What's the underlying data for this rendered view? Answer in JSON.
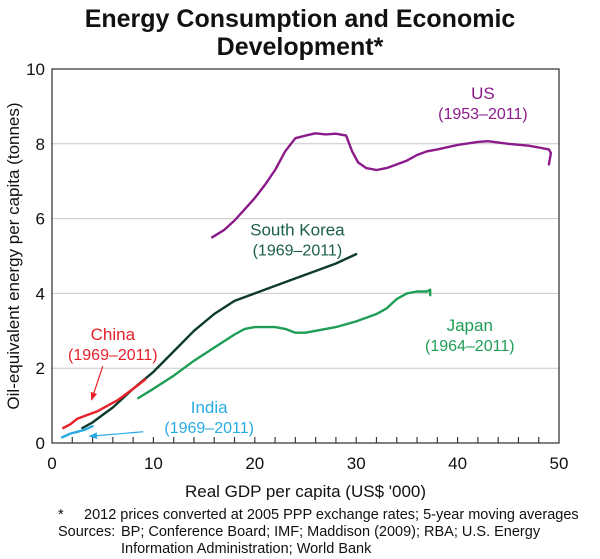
{
  "chart_data": {
    "type": "line",
    "title": "Energy Consumption and Economic Development*",
    "title_lines": [
      "Energy Consumption and Economic",
      "Development*"
    ],
    "xlabel": "Real GDP per capita (US$ '000)",
    "ylabel": "Oil-equivalent energy per capita (tonnes)",
    "xlim": [
      0,
      50
    ],
    "ylim": [
      0,
      10
    ],
    "xticks": [
      0,
      10,
      20,
      30,
      40,
      50
    ],
    "xminor_step": 2,
    "yticks": [
      0,
      2,
      4,
      6,
      8,
      10
    ],
    "grid": "horizontal",
    "legend": "inline-labels",
    "series": [
      {
        "name": "US",
        "period": "(1953–2011)",
        "color": "#8B1A8B",
        "points": [
          [
            15.8,
            5.5
          ],
          [
            17,
            5.7
          ],
          [
            18,
            5.95
          ],
          [
            19,
            6.25
          ],
          [
            20,
            6.55
          ],
          [
            21,
            6.9
          ],
          [
            22,
            7.3
          ],
          [
            23,
            7.8
          ],
          [
            24,
            8.15
          ],
          [
            25,
            8.22
          ],
          [
            26,
            8.28
          ],
          [
            27,
            8.25
          ],
          [
            28,
            8.27
          ],
          [
            29,
            8.22
          ],
          [
            29.6,
            7.8
          ],
          [
            30.2,
            7.5
          ],
          [
            31,
            7.35
          ],
          [
            32,
            7.3
          ],
          [
            33,
            7.35
          ],
          [
            34,
            7.45
          ],
          [
            35,
            7.55
          ],
          [
            36,
            7.7
          ],
          [
            37,
            7.8
          ],
          [
            38,
            7.85
          ],
          [
            40,
            7.97
          ],
          [
            42,
            8.05
          ],
          [
            43,
            8.07
          ],
          [
            45,
            8.0
          ],
          [
            47,
            7.95
          ],
          [
            48,
            7.9
          ],
          [
            49,
            7.85
          ],
          [
            49.2,
            7.75
          ],
          [
            49,
            7.45
          ]
        ],
        "label_at": [
          42.5,
          9.2
        ]
      },
      {
        "name": "South Korea",
        "period": "(1969–2011)",
        "color": "#0D3B2A",
        "label_color": "#1A5E4A",
        "points": [
          [
            3,
            0.4
          ],
          [
            4,
            0.55
          ],
          [
            5,
            0.75
          ],
          [
            6,
            0.95
          ],
          [
            7,
            1.2
          ],
          [
            8,
            1.45
          ],
          [
            10,
            1.9
          ],
          [
            12,
            2.45
          ],
          [
            14,
            3.0
          ],
          [
            16,
            3.45
          ],
          [
            18,
            3.8
          ],
          [
            20,
            4.0
          ],
          [
            22,
            4.2
          ],
          [
            24,
            4.4
          ],
          [
            26,
            4.6
          ],
          [
            28,
            4.8
          ],
          [
            30,
            5.05
          ]
        ],
        "label_at": [
          24.2,
          5.55
        ]
      },
      {
        "name": "Japan",
        "period": "(1964–2011)",
        "color": "#1E9E55",
        "points": [
          [
            8.5,
            1.2
          ],
          [
            10,
            1.45
          ],
          [
            12,
            1.8
          ],
          [
            14,
            2.2
          ],
          [
            16,
            2.55
          ],
          [
            18,
            2.9
          ],
          [
            19,
            3.05
          ],
          [
            20,
            3.1
          ],
          [
            22,
            3.1
          ],
          [
            23,
            3.05
          ],
          [
            24,
            2.95
          ],
          [
            25,
            2.95
          ],
          [
            26,
            3.0
          ],
          [
            28,
            3.1
          ],
          [
            30,
            3.25
          ],
          [
            32,
            3.45
          ],
          [
            33,
            3.6
          ],
          [
            34,
            3.85
          ],
          [
            35,
            4.0
          ],
          [
            36,
            4.05
          ],
          [
            37,
            4.05
          ],
          [
            37.3,
            4.1
          ],
          [
            37.3,
            3.95
          ]
        ],
        "label_at": [
          41.2,
          3.0
        ]
      },
      {
        "name": "China",
        "period": "(1969–2011)",
        "color": "#E8202A",
        "points": [
          [
            1.1,
            0.4
          ],
          [
            1.8,
            0.5
          ],
          [
            2.5,
            0.65
          ],
          [
            3.5,
            0.75
          ],
          [
            4.5,
            0.85
          ],
          [
            5.5,
            1.0
          ],
          [
            6.5,
            1.15
          ],
          [
            7.5,
            1.35
          ],
          [
            8.5,
            1.55
          ],
          [
            9.2,
            1.7
          ]
        ],
        "label_at": [
          6.0,
          2.75
        ],
        "arrow": [
          [
            5.0,
            2.05
          ],
          [
            3.9,
            1.15
          ]
        ]
      },
      {
        "name": "India",
        "period": "(1969–2011)",
        "color": "#29ABE2",
        "points": [
          [
            1.0,
            0.15
          ],
          [
            1.8,
            0.25
          ],
          [
            2.5,
            0.3
          ],
          [
            3.2,
            0.35
          ],
          [
            4.0,
            0.45
          ]
        ],
        "label_at": [
          15.5,
          0.8
        ],
        "arrow": [
          [
            9.0,
            0.3
          ],
          [
            3.7,
            0.18
          ]
        ]
      }
    ]
  },
  "footnotes": {
    "asterisk": "*",
    "note": "2012 prices converted at 2005 PPP exchange rates; 5-year moving averages",
    "sources_label": "Sources:",
    "sources_line1": "BP; Conference Board; IMF; Maddison (2009); RBA; U.S. Energy",
    "sources_line2": "Information Administration; World Bank"
  }
}
